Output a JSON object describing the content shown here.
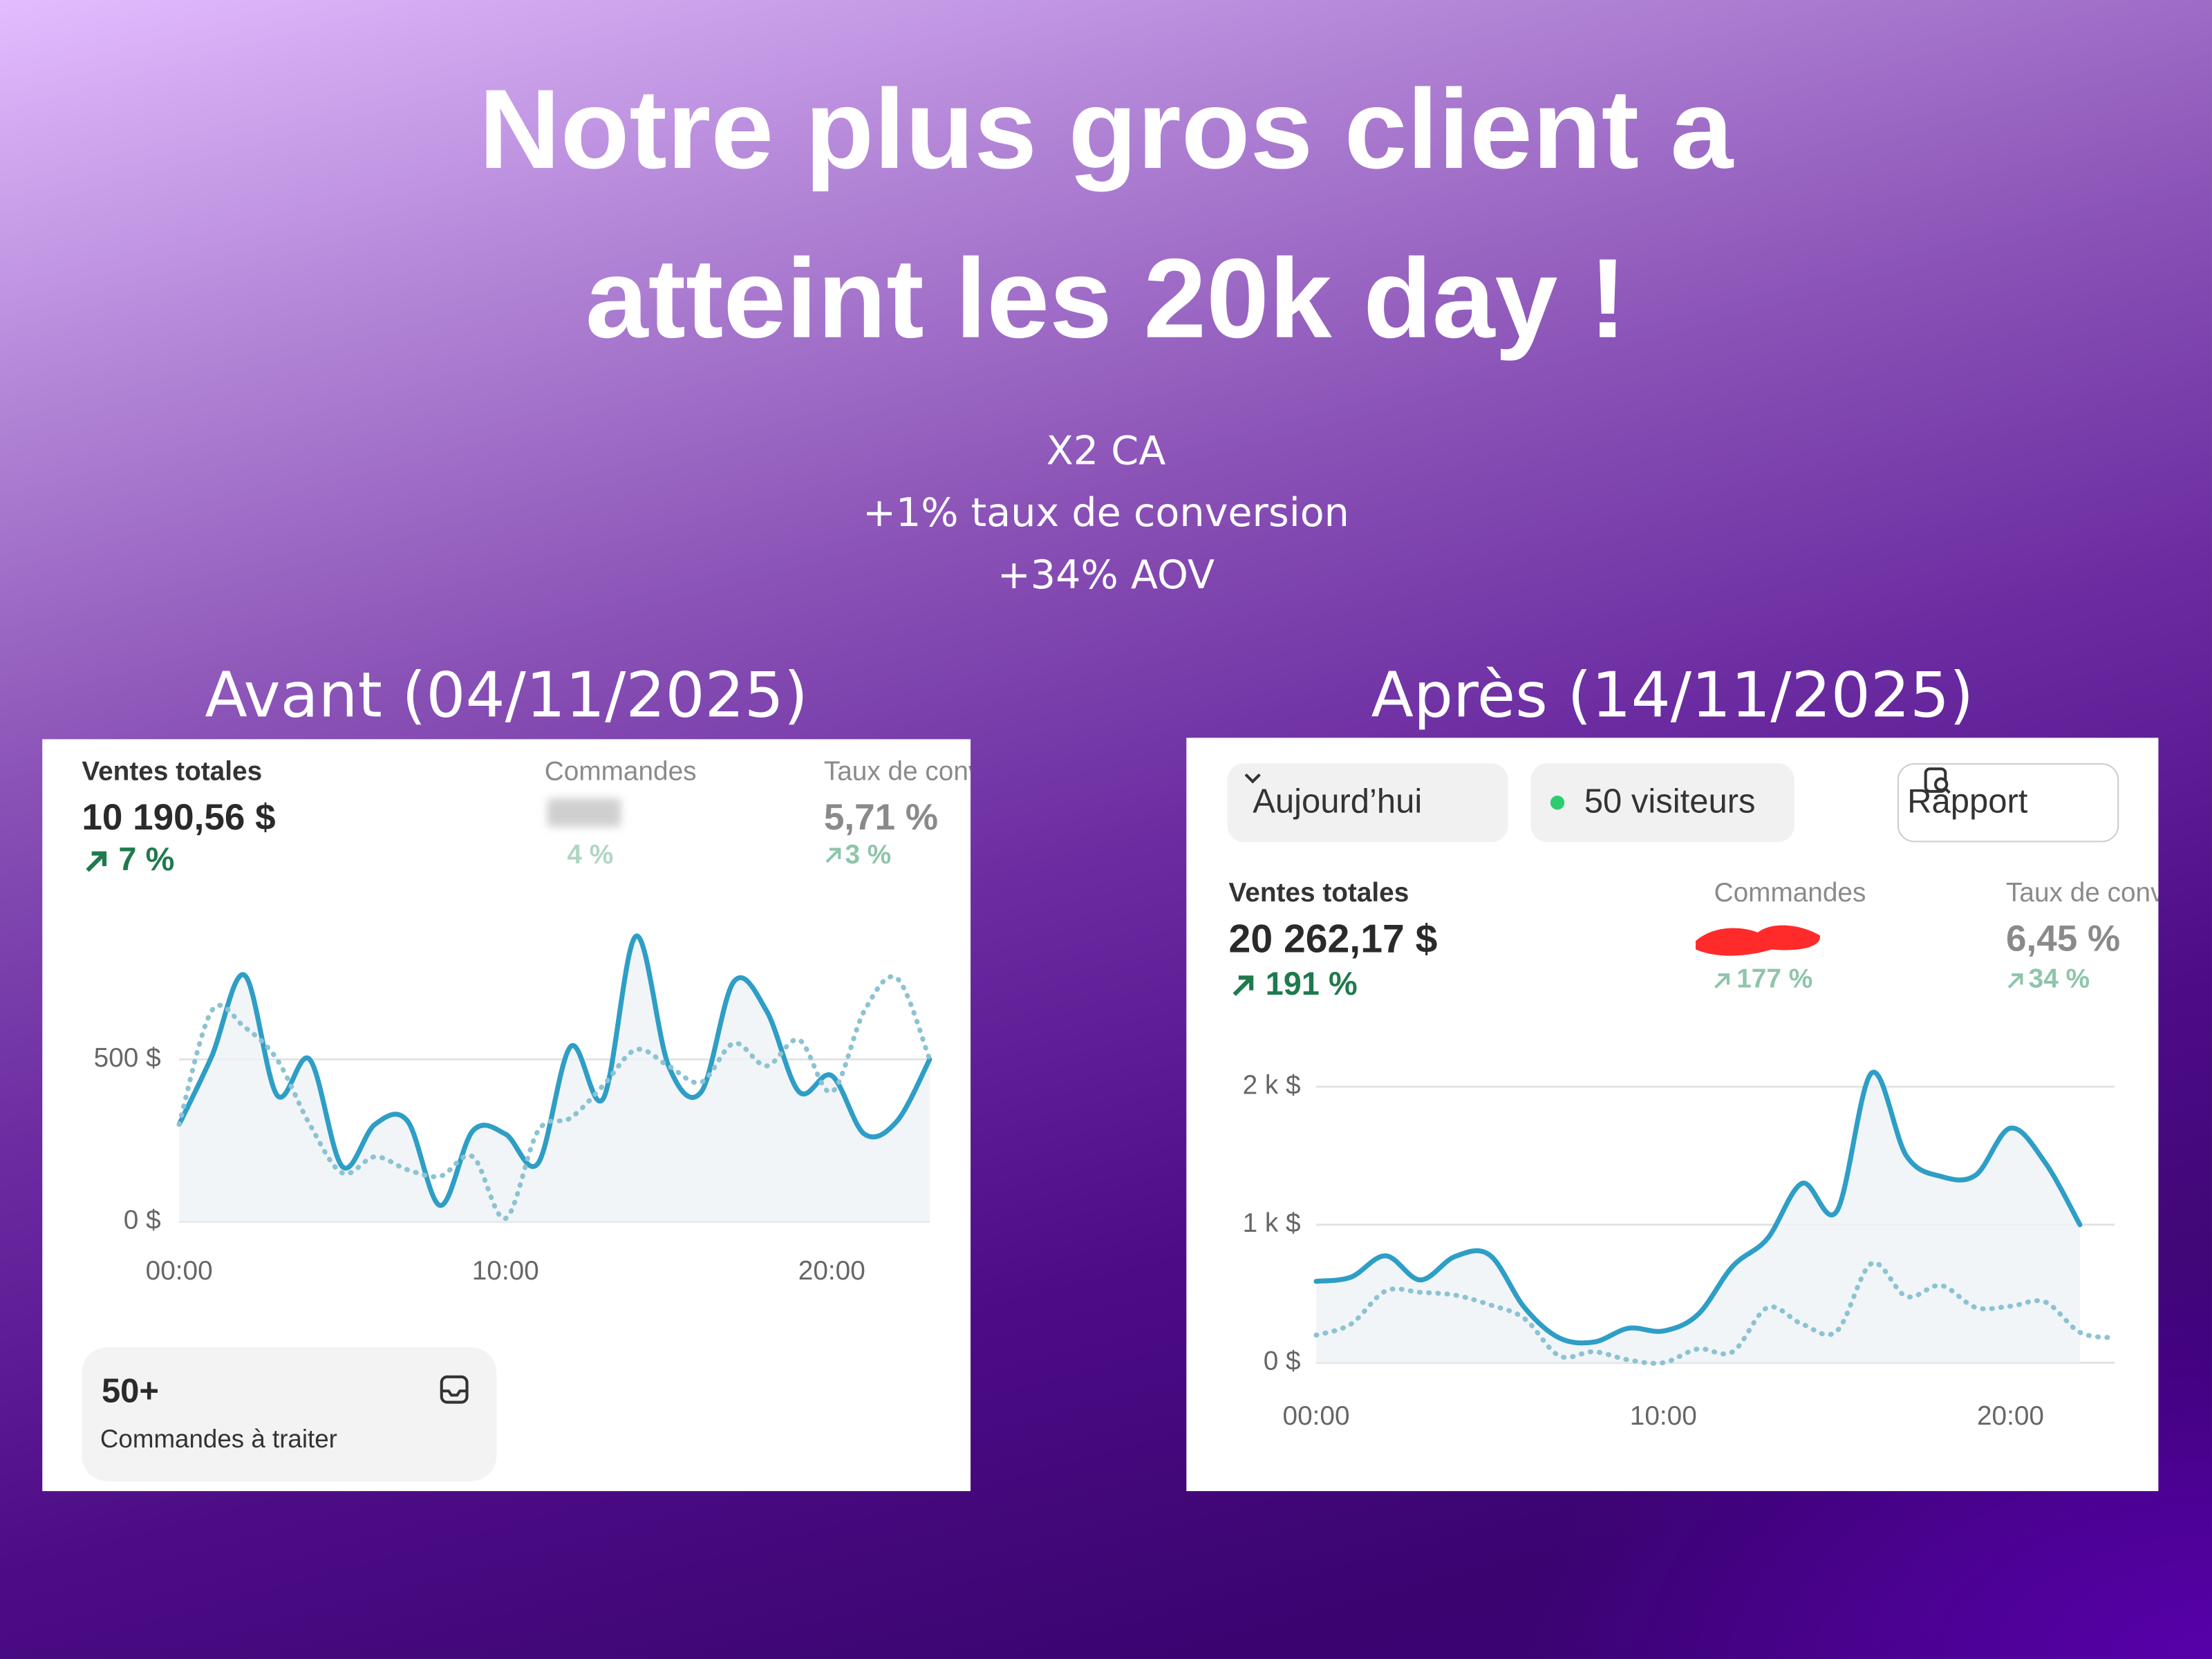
{
  "header": {
    "title_lines": [
      "Notre plus gros client a",
      "atteint les 20k day !"
    ],
    "subtitle_lines": [
      "X2 CA",
      "+1% taux de conversion",
      "+34% AOV"
    ]
  },
  "panels": [
    {
      "heading": "Avant (04/11/2025)",
      "kpis": [
        {
          "label": "Ventes totales",
          "value": "10 190,56 $",
          "change": "7 %"
        },
        {
          "label": "Commandes",
          "change": "4 %"
        },
        {
          "label": "Taux de conversion",
          "value": "5,71 %",
          "change": "3 %"
        }
      ],
      "pending": {
        "count": "50+",
        "label": "Commandes à traiter"
      }
    },
    {
      "heading": "Après (14/11/2025)",
      "controls": {
        "period": "Aujourd’hui",
        "visitors": "50 visiteurs",
        "report": "Rapport"
      },
      "kpis": [
        {
          "label": "Ventes totales",
          "value": "20 262,17 $",
          "change": "191 %"
        },
        {
          "label": "Commandes",
          "change": "177 %"
        },
        {
          "label": "Taux de conversion",
          "value": "6,45 %",
          "change": "34 %"
        }
      ]
    }
  ],
  "chart_data": [
    {
      "type": "line",
      "x": [
        0,
        1,
        2,
        3,
        4,
        5,
        6,
        7,
        8,
        9,
        10,
        11,
        12,
        13,
        14,
        15,
        16,
        17,
        18,
        19,
        20,
        21,
        22,
        23
      ],
      "series": [
        {
          "style": "solid",
          "color": "#2e9ec6",
          "values": [
            300,
            510,
            760,
            390,
            500,
            170,
            300,
            310,
            50,
            280,
            270,
            180,
            540,
            380,
            880,
            480,
            400,
            740,
            650,
            400,
            450,
            270,
            310,
            500
          ]
        },
        {
          "style": "dotted",
          "color": "#8cc3d3",
          "values": [
            300,
            650,
            600,
            500,
            300,
            150,
            200,
            160,
            140,
            200,
            10,
            280,
            320,
            420,
            530,
            480,
            430,
            550,
            480,
            560,
            400,
            650,
            750,
            500
          ]
        }
      ],
      "xlim": [
        0,
        23
      ],
      "ylim": [
        0,
        1000
      ],
      "xticks": [
        {
          "value": 0,
          "label": "00:00"
        },
        {
          "value": 10,
          "label": "10:00"
        },
        {
          "value": 20,
          "label": "20:00"
        }
      ],
      "yticks": [
        {
          "value": 0,
          "label": "0 $"
        },
        {
          "value": 500,
          "label": "500 $"
        }
      ],
      "grid": true
    },
    {
      "type": "line",
      "x": [
        0,
        1,
        2,
        3,
        4,
        5,
        6,
        7,
        8,
        9,
        10,
        11,
        12,
        13,
        14,
        15,
        16,
        17,
        18,
        19,
        20,
        21,
        22,
        23
      ],
      "series": [
        {
          "style": "solid",
          "color": "#2e9ec6",
          "values": [
            590,
            620,
            775,
            600,
            770,
            780,
            400,
            180,
            150,
            250,
            230,
            350,
            700,
            900,
            1300,
            1100,
            2100,
            1500,
            1350,
            1360,
            1700,
            1450,
            1000,
            null
          ]
        },
        {
          "style": "dotted",
          "color": "#8cc3d3",
          "values": [
            200,
            280,
            520,
            510,
            490,
            420,
            320,
            50,
            80,
            20,
            0,
            100,
            80,
            400,
            280,
            230,
            720,
            480,
            560,
            400,
            410,
            440,
            220,
            180
          ]
        }
      ],
      "xlim": [
        0,
        23
      ],
      "ylim": [
        0,
        2300
      ],
      "xticks": [
        {
          "value": 0,
          "label": "00:00"
        },
        {
          "value": 10,
          "label": "10:00"
        },
        {
          "value": 20,
          "label": "20:00"
        }
      ],
      "yticks": [
        {
          "value": 0,
          "label": "0 $"
        },
        {
          "value": 1000,
          "label": "1 k $"
        },
        {
          "value": 2000,
          "label": "2 k $"
        }
      ],
      "grid": true
    }
  ]
}
